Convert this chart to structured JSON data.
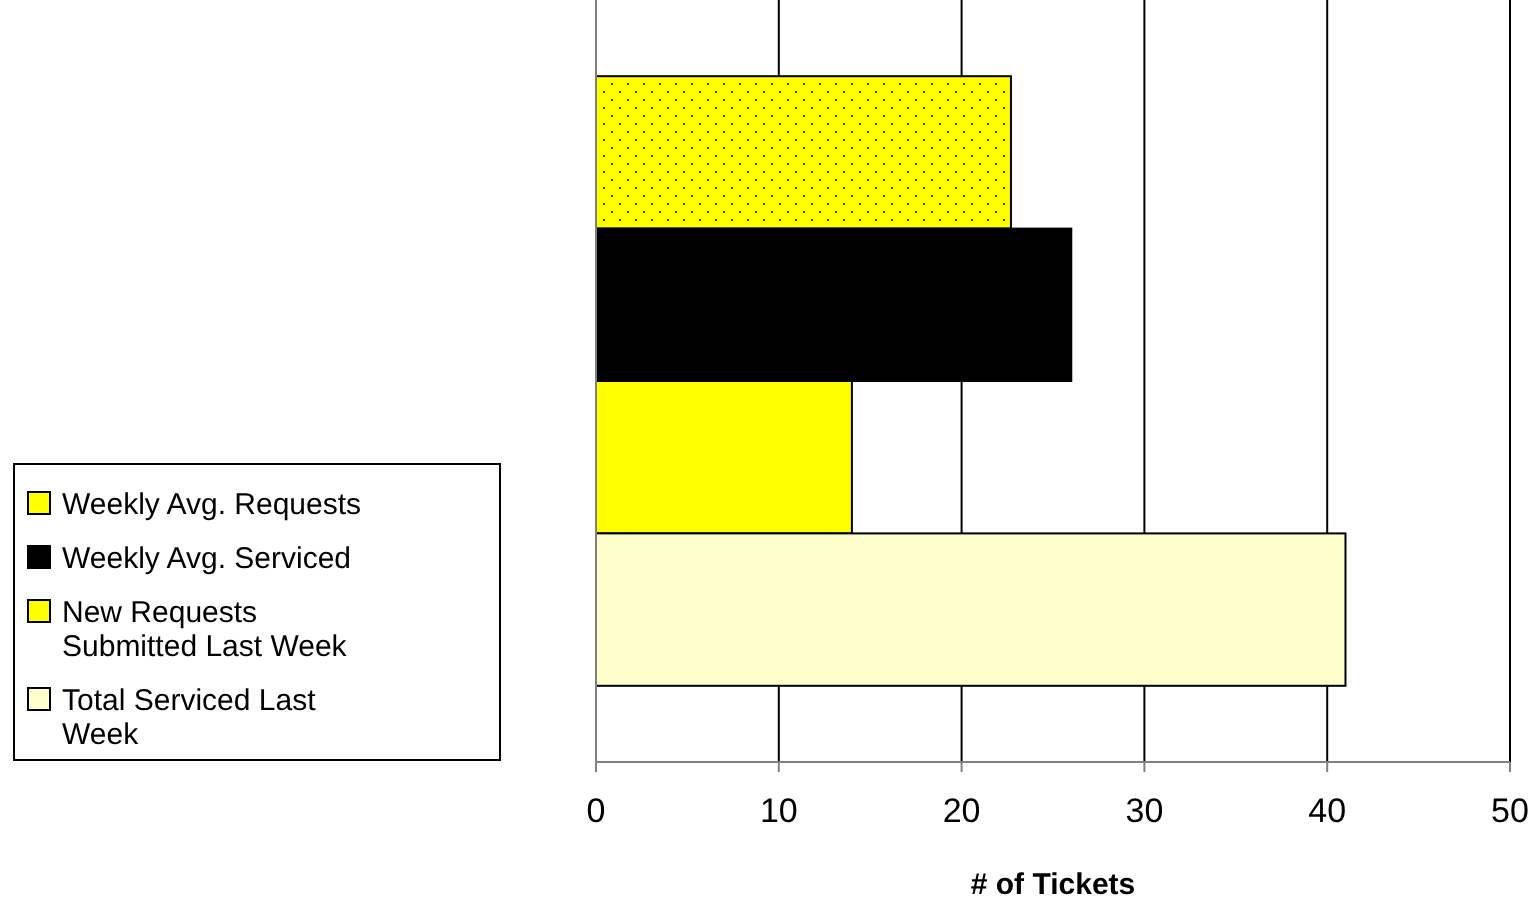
{
  "chart_data": {
    "type": "bar",
    "orientation": "horizontal",
    "categories": [
      null
    ],
    "xlabel": "# of Tickets",
    "xlim": [
      0,
      50
    ],
    "xticks": [
      0,
      10,
      20,
      30,
      40,
      50
    ],
    "grid": "x",
    "legend": "left",
    "series": [
      {
        "name": "Weekly Avg. Requests",
        "color": "#ffff00",
        "values": [
          22.7
        ]
      },
      {
        "name": "Weekly Avg. Serviced",
        "color": "#000000",
        "values": [
          26
        ]
      },
      {
        "name": "New Requests Submitted Last Week",
        "color": "#ffff00",
        "values": [
          14
        ]
      },
      {
        "name": "Total Serviced Last Week",
        "color": "#ffffcc",
        "values": [
          41
        ]
      }
    ]
  }
}
